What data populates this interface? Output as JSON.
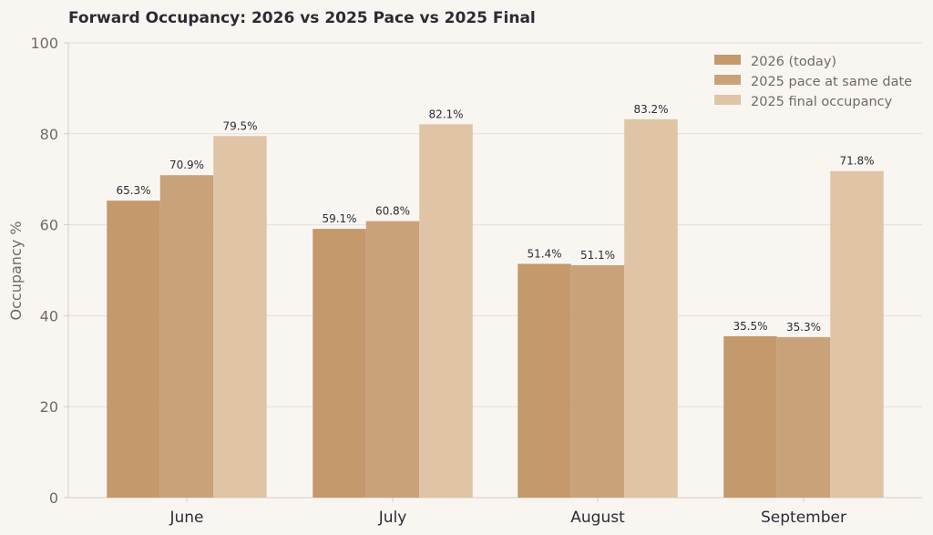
{
  "chart_data": {
    "type": "bar",
    "title": "Forward Occupancy: 2026 vs 2025 Pace vs 2025 Final",
    "xlabel": "",
    "ylabel": "Occupancy %",
    "ylim": [
      0,
      100
    ],
    "yticks": [
      0,
      20,
      40,
      60,
      80,
      100
    ],
    "grid": true,
    "legend_position": "top-right",
    "categories": [
      "June",
      "July",
      "August",
      "September"
    ],
    "series": [
      {
        "name": "2026 (today)",
        "color": "#c4996c",
        "values": [
          65.3,
          59.1,
          51.4,
          35.5
        ]
      },
      {
        "name": "2025 pace at same date",
        "color": "#caa27a",
        "values": [
          70.9,
          60.8,
          51.1,
          35.3
        ]
      },
      {
        "name": "2025 final occupancy",
        "color": "#e0c4a6",
        "values": [
          79.5,
          82.1,
          83.2,
          71.8
        ]
      }
    ],
    "value_suffix": "%"
  },
  "colors": {
    "background": "#f9f6f2",
    "grid": "#e4dfd9",
    "axis": "#d3cdc6",
    "title": "#2d2a36",
    "tick_text": "#6f6a68",
    "category_text": "#2d2a36",
    "label_text": "#2d2a36",
    "legend_text": "#6f6a68"
  }
}
